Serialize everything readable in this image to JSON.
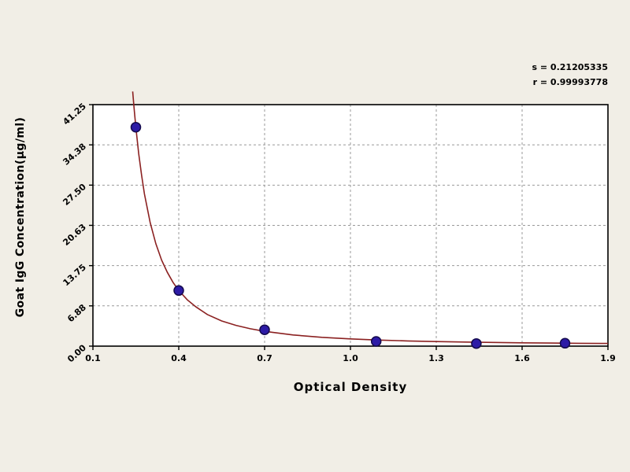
{
  "chart_data": {
    "type": "scatter",
    "title": "",
    "xlabel": "Optical Density",
    "ylabel": "Goat IgG Concentration(μg/ml)",
    "annotations": [
      "s = 0.21205335",
      "r = 0.99993778"
    ],
    "xlim": [
      0.1,
      1.9
    ],
    "ylim": [
      0.0,
      41.25
    ],
    "x_ticks": [
      "0.1",
      "0.4",
      "0.7",
      "1.0",
      "1.3",
      "1.6",
      "1.9"
    ],
    "y_ticks": [
      "0.00",
      "6.88",
      "13.75",
      "20.63",
      "27.50",
      "34.38",
      "41.25"
    ],
    "grid": "dashed",
    "legend": "none",
    "points": [
      [
        0.25,
        37.4
      ],
      [
        0.4,
        9.5
      ],
      [
        0.7,
        2.8
      ],
      [
        1.09,
        0.8
      ],
      [
        1.44,
        0.45
      ],
      [
        1.75,
        0.5
      ]
    ],
    "curve_points": [
      [
        0.239,
        43.5
      ],
      [
        0.242,
        41.7
      ],
      [
        0.245,
        40.0
      ],
      [
        0.25,
        37.4
      ],
      [
        0.26,
        32.9
      ],
      [
        0.27,
        29.2
      ],
      [
        0.28,
        26.0
      ],
      [
        0.3,
        21.1
      ],
      [
        0.32,
        17.5
      ],
      [
        0.34,
        14.7
      ],
      [
        0.36,
        12.6
      ],
      [
        0.38,
        10.9
      ],
      [
        0.4,
        9.5
      ],
      [
        0.43,
        7.9
      ],
      [
        0.46,
        6.7
      ],
      [
        0.5,
        5.4
      ],
      [
        0.55,
        4.3
      ],
      [
        0.6,
        3.55
      ],
      [
        0.65,
        2.97
      ],
      [
        0.7,
        2.52
      ],
      [
        0.8,
        1.91
      ],
      [
        0.9,
        1.51
      ],
      [
        1.0,
        1.23
      ],
      [
        1.1,
        1.04
      ],
      [
        1.2,
        0.89
      ],
      [
        1.3,
        0.78
      ],
      [
        1.4,
        0.7
      ],
      [
        1.5,
        0.63
      ],
      [
        1.6,
        0.57
      ],
      [
        1.7,
        0.53
      ],
      [
        1.8,
        0.49
      ],
      [
        1.9,
        0.46
      ]
    ],
    "colors": {
      "curve": "#8b2121",
      "point": "#2d1ba6",
      "point_edge": "#140a4d",
      "grid": "#999999",
      "plot_bg": "#ffffff",
      "page_bg": "#f1eee6",
      "frame": "#000000"
    }
  }
}
